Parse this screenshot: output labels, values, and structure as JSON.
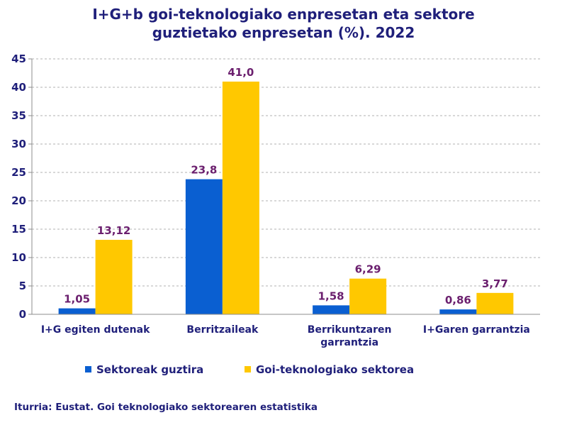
{
  "chart_data": {
    "type": "bar",
    "title_lines": [
      "I+G+b goi-teknologiako enpresetan eta sektore",
      "guztietako enpresetan (%). 2022"
    ],
    "categories": [
      [
        "I+G egiten dutenak"
      ],
      [
        "Berritzaileak"
      ],
      [
        "Berrikuntzaren",
        "garrantzia"
      ],
      [
        "I+Garen garrantzia"
      ]
    ],
    "series": [
      {
        "name": "Sektoreak guztira",
        "color": "#0a5fd1",
        "values": [
          1.05,
          23.8,
          1.58,
          0.86
        ],
        "labels": [
          "1,05",
          "23,8",
          "1,58",
          "0,86"
        ]
      },
      {
        "name": "Goi-teknologiako sektorea",
        "color": "#ffc800",
        "values": [
          13.12,
          41.0,
          6.29,
          3.77
        ],
        "labels": [
          "13,12",
          "41,0",
          "6,29",
          "3,77"
        ]
      }
    ],
    "ylim": [
      0,
      45
    ],
    "yticks": [
      0,
      5,
      10,
      15,
      20,
      25,
      30,
      35,
      40,
      45
    ],
    "grid": true,
    "legend_position": "bottom",
    "source": "Iturria: Eustat. Goi teknologiako sektorearen estatistika"
  }
}
